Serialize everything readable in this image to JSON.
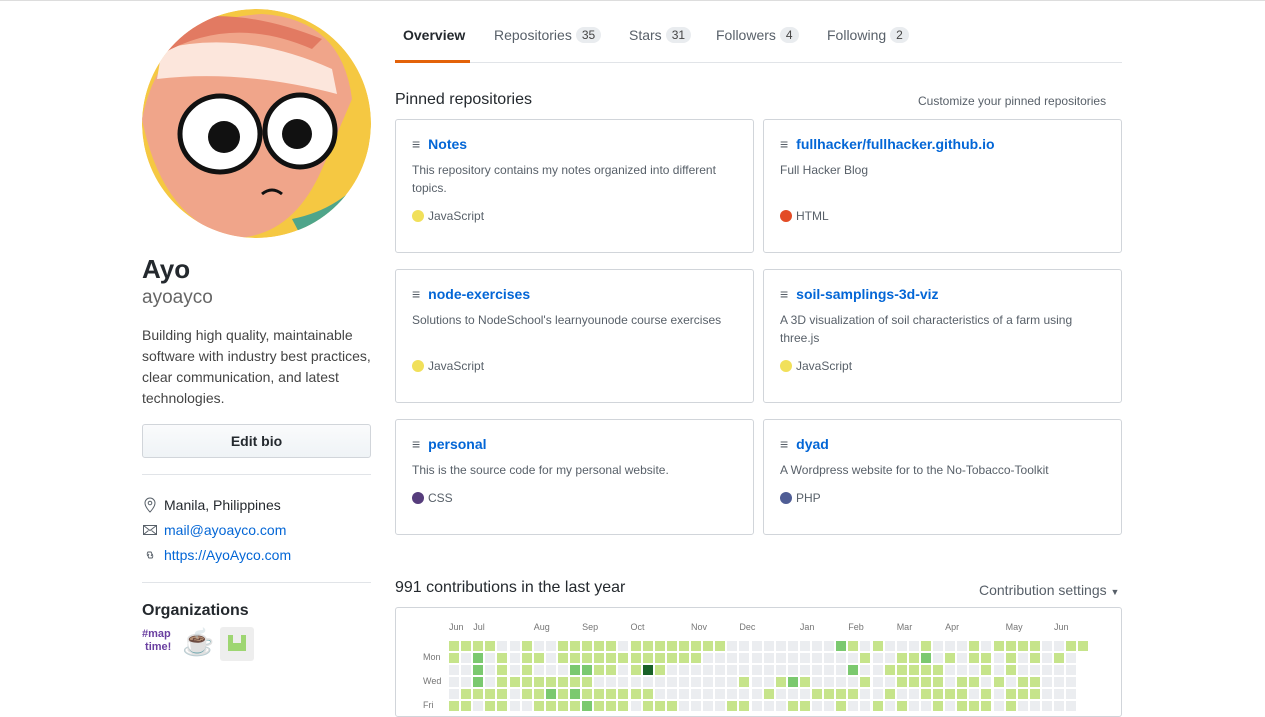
{
  "profile": {
    "name": "Ayo",
    "login": "ayoayco",
    "bio": "Building high quality, maintainable software with industry best practices, clear communication, and latest technologies.",
    "edit_bio": "Edit bio",
    "location": "Manila, Philippines",
    "email": "mail@ayoayco.com",
    "website": "https://AyoAyco.com"
  },
  "organizations": {
    "title": "Organizations",
    "items": [
      {
        "name": "maptime",
        "icon": "maptime-logo"
      },
      {
        "name": "coffee",
        "icon": "coffee-cup-logo"
      },
      {
        "name": "green-org",
        "icon": "green-pixel-logo"
      }
    ]
  },
  "tabs": [
    {
      "label": "Overview",
      "active": true
    },
    {
      "label": "Repositories",
      "count": "35"
    },
    {
      "label": "Stars",
      "count": "31"
    },
    {
      "label": "Followers",
      "count": "4"
    },
    {
      "label": "Following",
      "count": "2"
    }
  ],
  "pinned": {
    "title": "Pinned repositories",
    "customize": "Customize your pinned repositories",
    "repos": [
      {
        "name": "Notes",
        "desc": "This repository contains my notes organized into different topics.",
        "lang": "JavaScript",
        "color": "#f1e05a"
      },
      {
        "name": "fullhacker/fullhacker.github.io",
        "desc": "Full Hacker Blog",
        "lang": "HTML",
        "color": "#e34c26"
      },
      {
        "name": "node-exercises",
        "desc": "Solutions to NodeSchool's learnyounode course exercises",
        "lang": "JavaScript",
        "color": "#f1e05a"
      },
      {
        "name": "soil-samplings-3d-viz",
        "desc": "A 3D visualization of soil characteristics of a farm using three.js",
        "lang": "JavaScript",
        "color": "#f1e05a"
      },
      {
        "name": "personal",
        "desc": "This is the source code for my personal website.",
        "lang": "CSS",
        "color": "#563d7c"
      },
      {
        "name": "dyad",
        "desc": "A Wordpress website for to the No-Tobacco-Toolkit",
        "lang": "PHP",
        "color": "#4F5D95"
      }
    ]
  },
  "contributions": {
    "title": "991 contributions in the last year",
    "settings": "Contribution settings",
    "months": [
      "Jun",
      "Jul",
      "Aug",
      "Sep",
      "Oct",
      "Nov",
      "Dec",
      "Jan",
      "Feb",
      "Mar",
      "Apr",
      "May",
      "Jun"
    ],
    "days": [
      "Mon",
      "Wed",
      "Fri"
    ],
    "level_colors": [
      "#ebedf0",
      "#c6e48b",
      "#7bc96f",
      "#239a3b",
      "#196127"
    ],
    "grid": [
      "11110010011111011111111000000000210100010001011110011",
      "10201011011111111111100000000000001001120101101010100",
      "00201010002211014100000000000000020011111000101000000",
      "00201111111100000000000010012100001001111011010110000",
      "01111011212111111000000000100011110010011110101110000",
      "11011001111211101110000110001100100101001011101000000"
    ]
  }
}
